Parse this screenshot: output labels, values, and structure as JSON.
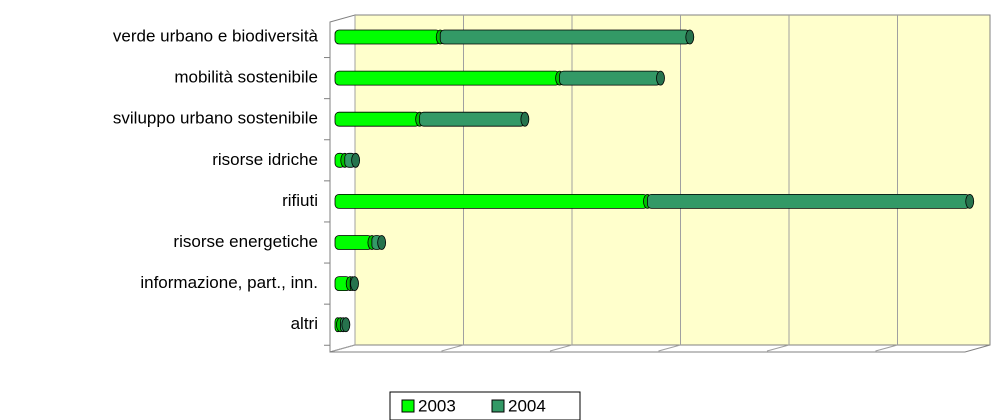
{
  "chart_data": {
    "type": "bar",
    "orientation": "horizontal",
    "stacked": true,
    "categories": [
      "verde urbano e biodiversità",
      "mobilità sostenibile",
      "sviluppo urbano sostenibile",
      "risorse idriche",
      "rifiuti",
      "risorse energetiche",
      "informazione, part., inn.",
      "altri"
    ],
    "series": [
      {
        "name": "2003",
        "color": "#00ff00",
        "values": [
          0.97,
          2.07,
          0.78,
          0.09,
          2.88,
          0.34,
          0.14,
          0.05
        ]
      },
      {
        "name": "2004",
        "color": "#339966",
        "values": [
          2.3,
          0.93,
          0.97,
          0.1,
          2.97,
          0.09,
          0.04,
          0.05
        ]
      }
    ],
    "xlim": [
      0,
      6
    ],
    "xticks": [
      0,
      1,
      2,
      3,
      4,
      5,
      6
    ],
    "grid": true,
    "legend": "bottom"
  }
}
